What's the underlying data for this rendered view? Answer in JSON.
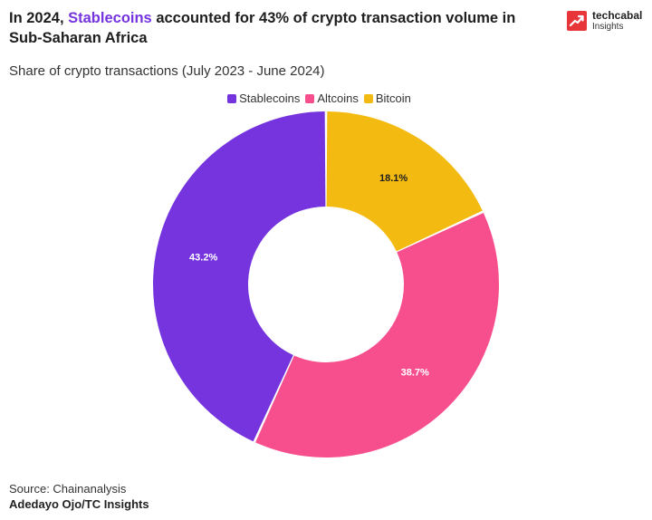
{
  "title": {
    "prefix": "In 2024, ",
    "highlight": "Stablecoins",
    "suffix": " accounted for 43% of crypto transaction volume in Sub-Saharan Africa"
  },
  "brand": {
    "name": "techcabal",
    "sub": "Insights",
    "color": "#e8353a"
  },
  "footer": {
    "source": "Source: Chainanalysis",
    "author": "Adedayo Ojo/TC Insights"
  },
  "chart_data": {
    "type": "pie",
    "style": "donut",
    "title": "Share of crypto transactions (July 2023 - June 2024)",
    "legend_position": "top",
    "categories": [
      "Stablecoins",
      "Altcoins",
      "Bitcoin"
    ],
    "legend": [
      {
        "label": "Stablecoins",
        "color": "#7534de"
      },
      {
        "label": "Altcoins",
        "color": "#f74f8e"
      },
      {
        "label": "Bitcoin",
        "color": "#f3bb12"
      }
    ],
    "slices": [
      {
        "label": "Bitcoin",
        "value": 18.1,
        "display": "18.1%",
        "color": "#f3bb12",
        "label_color": "#1e1e1e"
      },
      {
        "label": "Altcoins",
        "value": 38.7,
        "display": "38.7%",
        "color": "#f74f8e",
        "label_color": "#ffffff"
      },
      {
        "label": "Stablecoins",
        "value": 43.2,
        "display": "43.2%",
        "color": "#7534de",
        "label_color": "#ffffff"
      }
    ],
    "unit": "%"
  }
}
